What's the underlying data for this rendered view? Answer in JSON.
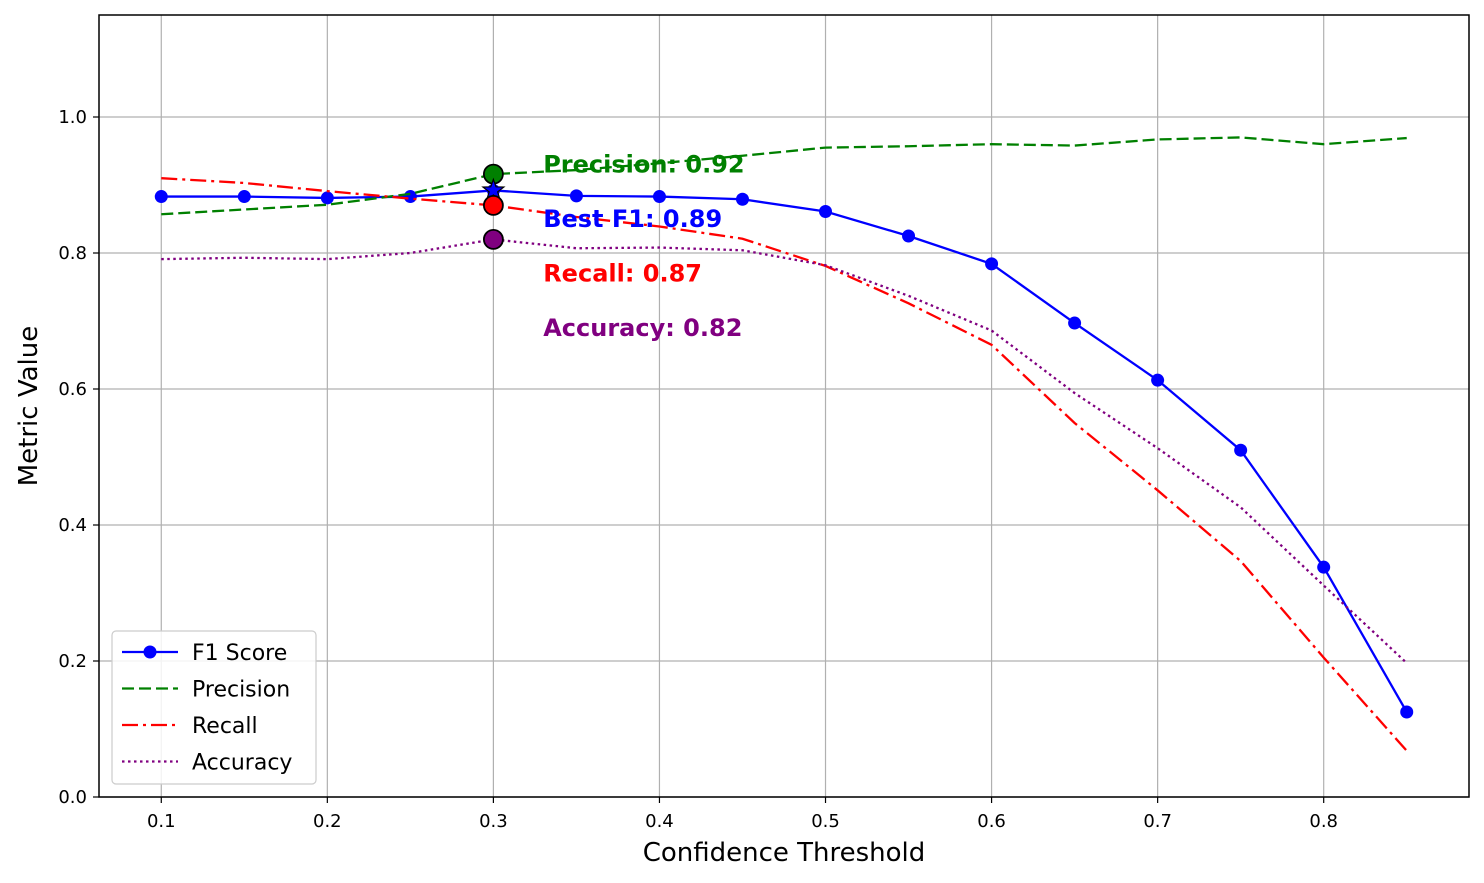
{
  "chart_data": {
    "type": "line",
    "title": "",
    "xlabel": "Confidence Threshold",
    "ylabel": "Metric Value",
    "xlim": [
      0.0625,
      0.8875
    ],
    "ylim": [
      0.0,
      1.15
    ],
    "x_ticks": [
      "0.1",
      "0.2",
      "0.3",
      "0.4",
      "0.5",
      "0.6",
      "0.7",
      "0.8"
    ],
    "y_ticks": [
      "0.0",
      "0.2",
      "0.4",
      "0.6",
      "0.8",
      "1.0"
    ],
    "grid": true,
    "legend_position": "lower-left",
    "x": [
      0.1,
      0.15,
      0.2,
      0.25,
      0.3,
      0.35,
      0.4,
      0.45,
      0.5,
      0.55,
      0.6,
      0.65,
      0.7,
      0.75,
      0.8,
      0.85
    ],
    "series": [
      {
        "name": "F1 Score",
        "color": "#0000ff",
        "style": "solid-markers",
        "values": [
          0.883,
          0.883,
          0.881,
          0.883,
          0.892,
          0.884,
          0.883,
          0.879,
          0.861,
          0.825,
          0.784,
          0.697,
          0.613,
          0.51,
          0.338,
          0.125
        ]
      },
      {
        "name": "Precision",
        "color": "#008000",
        "style": "dashed",
        "values": [
          0.857,
          0.864,
          0.871,
          0.887,
          0.916,
          0.922,
          0.932,
          0.943,
          0.955,
          0.957,
          0.96,
          0.958,
          0.967,
          0.97,
          0.96,
          0.969
        ]
      },
      {
        "name": "Recall",
        "color": "#ff0000",
        "style": "dashdot",
        "values": [
          0.91,
          0.903,
          0.891,
          0.88,
          0.87,
          0.853,
          0.839,
          0.821,
          0.781,
          0.726,
          0.665,
          0.55,
          0.451,
          0.347,
          0.205,
          0.068
        ]
      },
      {
        "name": "Accuracy",
        "color": "#800080",
        "style": "dotted",
        "values": [
          0.791,
          0.793,
          0.791,
          0.8,
          0.82,
          0.807,
          0.808,
          0.804,
          0.782,
          0.737,
          0.686,
          0.594,
          0.513,
          0.426,
          0.311,
          0.197
        ]
      }
    ],
    "highlight": {
      "x": 0.3,
      "points": [
        {
          "name": "Precision",
          "value": 0.916,
          "color": "#008000",
          "marker": "circle"
        },
        {
          "name": "F1 Score",
          "value": 0.892,
          "color": "#0000ff",
          "marker": "star"
        },
        {
          "name": "Recall",
          "value": 0.87,
          "color": "#ff0000",
          "marker": "circle"
        },
        {
          "name": "Accuracy",
          "value": 0.82,
          "color": "#800080",
          "marker": "circle"
        }
      ]
    },
    "annotations": [
      {
        "text": "Precision: 0.92",
        "color": "#008000",
        "x": 0.33,
        "y": 0.93
      },
      {
        "text": "Best F1: 0.89",
        "color": "#0000ff",
        "x": 0.33,
        "y": 0.85
      },
      {
        "text": "Recall: 0.87",
        "color": "#ff0000",
        "x": 0.33,
        "y": 0.77
      },
      {
        "text": "Accuracy: 0.82",
        "color": "#800080",
        "x": 0.33,
        "y": 0.69
      }
    ]
  }
}
